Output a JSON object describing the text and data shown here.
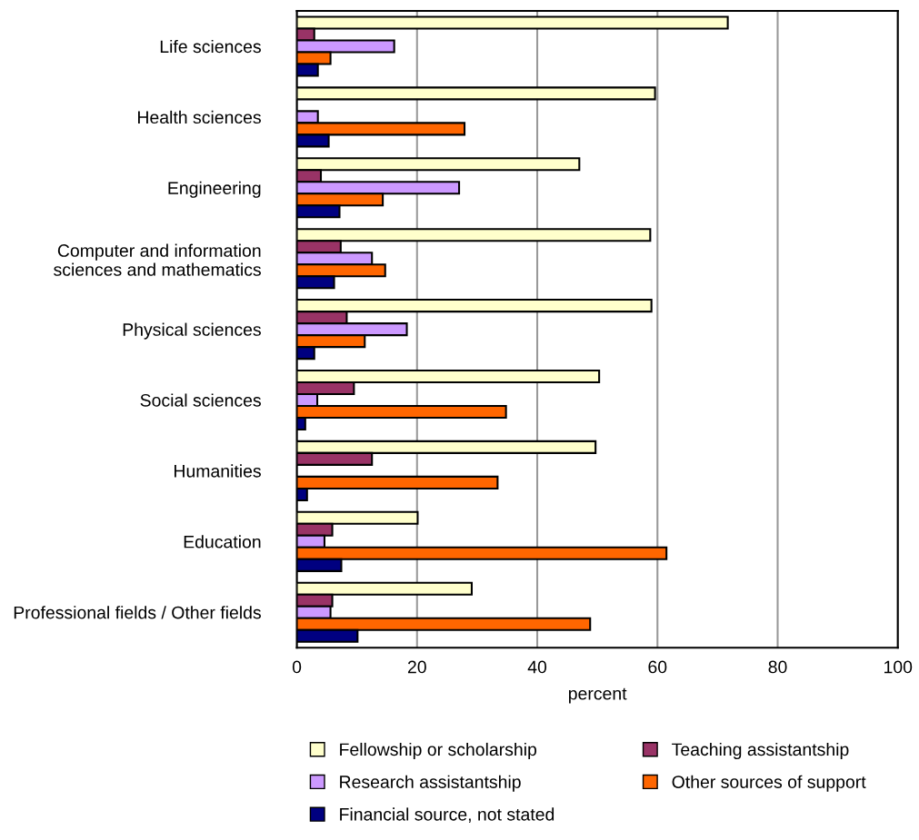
{
  "chart_data": {
    "type": "bar",
    "orientation": "horizontal",
    "xlabel": "percent",
    "categories": [
      "Life sciences",
      "Health sciences",
      "Engineering",
      "Computer and information\nsciences and mathematics",
      "Physical sciences",
      "Social sciences",
      "Humanities",
      "Education",
      "Professional fields / Other fields"
    ],
    "series": [
      {
        "name": "Fellowship or scholarship",
        "color": "#ffffcc",
        "values": [
          71.7,
          59.6,
          47.0,
          58.8,
          59.0,
          50.3,
          49.7,
          20.1,
          29.1
        ]
      },
      {
        "name": "Teaching assistantship",
        "color": "#993366",
        "values": [
          2.9,
          null,
          4.0,
          7.3,
          8.3,
          9.5,
          12.5,
          5.9,
          5.9
        ]
      },
      {
        "name": "Research assistantship",
        "color": "#cc99ff",
        "values": [
          16.2,
          3.5,
          27.0,
          12.5,
          18.3,
          3.4,
          null,
          4.6,
          5.6
        ]
      },
      {
        "name": "Other sources of support",
        "color": "#ff6600",
        "values": [
          5.6,
          27.9,
          14.3,
          14.7,
          11.3,
          34.8,
          33.4,
          61.5,
          48.8
        ]
      },
      {
        "name": "Financial source, not stated",
        "color": "#000080",
        "values": [
          3.5,
          5.3,
          7.1,
          6.2,
          2.9,
          1.4,
          1.7,
          7.4,
          10.1
        ]
      }
    ],
    "xlim": [
      0,
      100
    ],
    "xticks": [
      0,
      20,
      40,
      60,
      80,
      100
    ],
    "grid": "x",
    "legend": "bottom"
  }
}
